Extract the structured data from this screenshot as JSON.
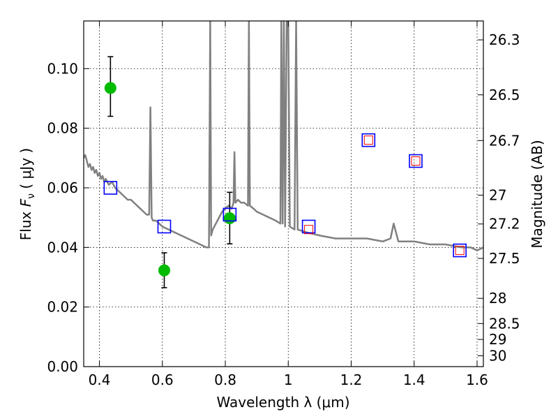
{
  "chart_data": {
    "type": "scatter",
    "xlabel": "Wavelength  λ (μm)",
    "ylabel": "Flux  F_ν  ( μJy )",
    "ylabel_parts": {
      "prefix": "Flux  ",
      "symbol": "F",
      "subscript": "ν",
      "suffix": "  ( μJy )"
    },
    "y2label": "Magnitude (AB)",
    "xlim": [
      0.35,
      1.62
    ],
    "ylim": [
      0.0,
      0.116
    ],
    "grid": true,
    "x_ticks": [
      0.4,
      0.6,
      0.8,
      1.0,
      1.2,
      1.4,
      1.6
    ],
    "x_tick_labels": [
      "0.4",
      "0.6",
      "0.8",
      "1",
      "1.2",
      "1.4",
      "1.6"
    ],
    "y_ticks": [
      0.0,
      0.02,
      0.04,
      0.06,
      0.08,
      0.1
    ],
    "y_tick_labels": [
      "0.00",
      "0.02",
      "0.04",
      "0.06",
      "0.08",
      "0.10"
    ],
    "y2_ticks": [
      {
        "mag": 26.3,
        "label": "26.3"
      },
      {
        "mag": 26.5,
        "label": "26.5"
      },
      {
        "mag": 26.7,
        "label": "26.7"
      },
      {
        "mag": 27.0,
        "label": "27"
      },
      {
        "mag": 27.2,
        "label": "27.2"
      },
      {
        "mag": 27.5,
        "label": "27.5"
      },
      {
        "mag": 28.0,
        "label": "28"
      },
      {
        "mag": 28.5,
        "label": "28.5"
      },
      {
        "mag": 29.0,
        "label": "29"
      },
      {
        "mag": 30.0,
        "label": "30"
      }
    ],
    "series": [
      {
        "kind": "line",
        "color": "#808080",
        "points": [
          [
            0.35,
            0.07
          ],
          [
            0.355,
            0.071
          ],
          [
            0.36,
            0.069
          ],
          [
            0.365,
            0.067
          ],
          [
            0.37,
            0.068
          ],
          [
            0.375,
            0.066
          ],
          [
            0.38,
            0.067
          ],
          [
            0.385,
            0.065
          ],
          [
            0.39,
            0.066
          ],
          [
            0.395,
            0.064
          ],
          [
            0.4,
            0.065
          ],
          [
            0.405,
            0.063
          ],
          [
            0.41,
            0.064
          ],
          [
            0.415,
            0.062
          ],
          [
            0.42,
            0.063
          ],
          [
            0.43,
            0.061
          ],
          [
            0.44,
            0.062
          ],
          [
            0.45,
            0.06
          ],
          [
            0.46,
            0.059
          ],
          [
            0.47,
            0.058
          ],
          [
            0.48,
            0.057
          ],
          [
            0.49,
            0.056
          ],
          [
            0.5,
            0.056
          ],
          [
            0.51,
            0.055
          ],
          [
            0.52,
            0.054
          ],
          [
            0.53,
            0.053
          ],
          [
            0.54,
            0.052
          ],
          [
            0.55,
            0.051
          ],
          [
            0.558,
            0.051
          ],
          [
            0.562,
            0.087
          ],
          [
            0.566,
            0.05
          ],
          [
            0.57,
            0.049
          ],
          [
            0.58,
            0.049
          ],
          [
            0.59,
            0.048
          ],
          [
            0.6,
            0.047
          ],
          [
            0.62,
            0.046
          ],
          [
            0.64,
            0.045
          ],
          [
            0.66,
            0.044
          ],
          [
            0.68,
            0.043
          ],
          [
            0.7,
            0.042
          ],
          [
            0.72,
            0.041
          ],
          [
            0.74,
            0.04
          ],
          [
            0.748,
            0.04
          ],
          [
            0.752,
            0.116
          ],
          [
            0.755,
            0.044
          ],
          [
            0.76,
            0.046
          ],
          [
            0.77,
            0.048
          ],
          [
            0.78,
            0.05
          ],
          [
            0.79,
            0.052
          ],
          [
            0.8,
            0.053
          ],
          [
            0.81,
            0.054
          ],
          [
            0.82,
            0.053
          ],
          [
            0.826,
            0.055
          ],
          [
            0.829,
            0.072
          ],
          [
            0.832,
            0.055
          ],
          [
            0.84,
            0.056
          ],
          [
            0.85,
            0.055
          ],
          [
            0.86,
            0.055
          ],
          [
            0.872,
            0.054
          ],
          [
            0.875,
            0.116
          ],
          [
            0.878,
            0.054
          ],
          [
            0.89,
            0.053
          ],
          [
            0.9,
            0.052
          ],
          [
            0.92,
            0.051
          ],
          [
            0.94,
            0.05
          ],
          [
            0.96,
            0.049
          ],
          [
            0.975,
            0.048
          ],
          [
            0.978,
            0.116
          ],
          [
            0.982,
            0.048
          ],
          [
            0.986,
            0.116
          ],
          [
            0.99,
            0.047
          ],
          [
            0.995,
            0.116
          ],
          [
            1.0,
            0.116
          ],
          [
            1.005,
            0.047
          ],
          [
            1.02,
            0.046
          ],
          [
            1.025,
            0.116
          ],
          [
            1.03,
            0.046
          ],
          [
            1.06,
            0.045
          ],
          [
            1.1,
            0.044
          ],
          [
            1.15,
            0.043
          ],
          [
            1.2,
            0.043
          ],
          [
            1.25,
            0.043
          ],
          [
            1.3,
            0.042
          ],
          [
            1.325,
            0.043
          ],
          [
            1.335,
            0.048
          ],
          [
            1.35,
            0.042
          ],
          [
            1.4,
            0.042
          ],
          [
            1.45,
            0.041
          ],
          [
            1.5,
            0.041
          ],
          [
            1.55,
            0.04
          ],
          [
            1.58,
            0.04
          ],
          [
            1.6,
            0.039
          ],
          [
            1.62,
            0.04
          ]
        ]
      },
      {
        "kind": "observed",
        "color": "#00bb00",
        "points": [
          {
            "x": 0.435,
            "y": 0.0935,
            "err_lo": 0.084,
            "err_hi": 0.104
          },
          {
            "x": 0.606,
            "y": 0.0323,
            "err_lo": 0.0265,
            "err_hi": 0.0382
          },
          {
            "x": 0.814,
            "y": 0.0498,
            "err_lo": 0.0412,
            "err_hi": 0.0585
          }
        ]
      },
      {
        "kind": "model-blue",
        "color": "#0000ff",
        "points": [
          {
            "x": 0.435,
            "y": 0.06
          },
          {
            "x": 0.606,
            "y": 0.047
          },
          {
            "x": 0.814,
            "y": 0.051
          },
          {
            "x": 1.065,
            "y": 0.047
          },
          {
            "x": 1.255,
            "y": 0.076
          },
          {
            "x": 1.405,
            "y": 0.069
          },
          {
            "x": 1.545,
            "y": 0.039
          }
        ]
      },
      {
        "kind": "model-red",
        "color": "#ff0000",
        "points": [
          {
            "x": 1.065,
            "y": 0.046
          },
          {
            "x": 1.255,
            "y": 0.076
          },
          {
            "x": 1.405,
            "y": 0.069
          },
          {
            "x": 1.545,
            "y": 0.039
          }
        ]
      }
    ]
  }
}
